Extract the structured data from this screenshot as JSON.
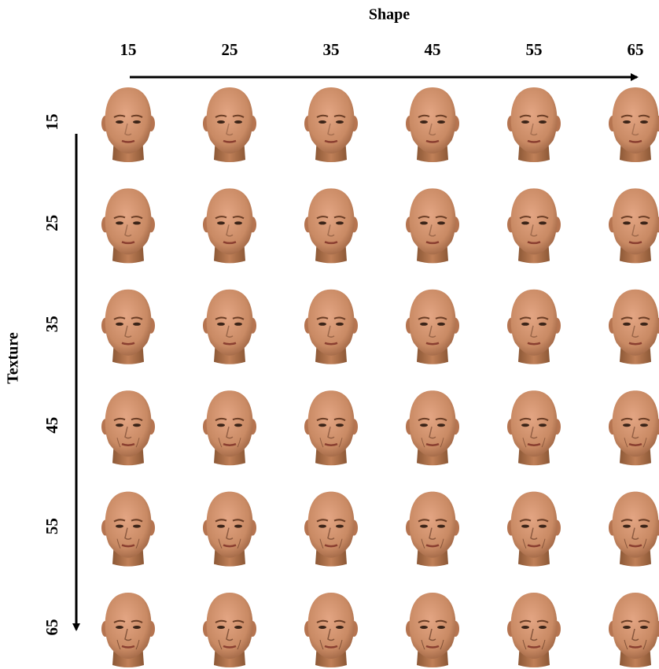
{
  "header": {
    "title": "Shape",
    "labels": [
      "15",
      "25",
      "35",
      "45",
      "55",
      "65"
    ]
  },
  "side": {
    "title": "Texture",
    "labels": [
      "15",
      "25",
      "35",
      "45",
      "55",
      "65"
    ]
  }
}
